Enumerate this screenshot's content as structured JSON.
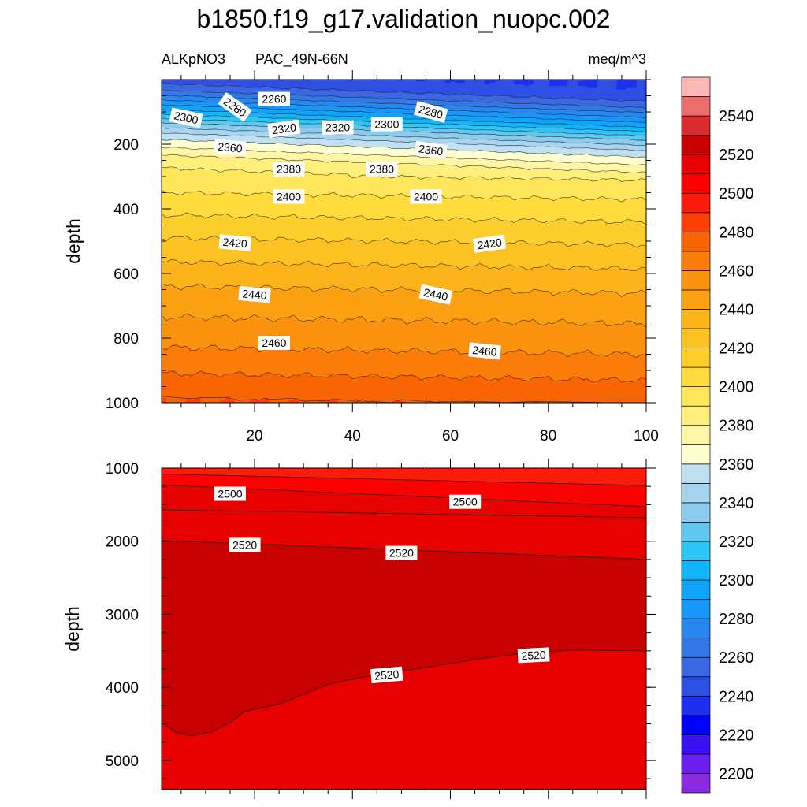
{
  "chart_data": {
    "type": "contour",
    "title": "b1850.f19_g17.validation_nuopc.002",
    "variable": "ALKpNO3",
    "region": "PAC_49N-66N",
    "units": "meq/m^3",
    "colorbar": {
      "levels": [
        2200,
        2210,
        2220,
        2230,
        2240,
        2250,
        2260,
        2270,
        2280,
        2290,
        2300,
        2310,
        2320,
        2330,
        2340,
        2350,
        2360,
        2370,
        2380,
        2390,
        2400,
        2410,
        2420,
        2430,
        2440,
        2450,
        2460,
        2470,
        2480,
        2490,
        2500,
        2510,
        2520,
        2530,
        2540,
        2550
      ],
      "labels": [
        "2200",
        "2220",
        "2240",
        "2260",
        "2280",
        "2300",
        "2320",
        "2340",
        "2360",
        "2380",
        "2400",
        "2420",
        "2440",
        "2460",
        "2480",
        "2500",
        "2520",
        "2540"
      ],
      "colors": [
        "#8a2be2",
        "#6a1ff0",
        "#3a10f5",
        "#0000ff",
        "#1d2ff0",
        "#2d4fe5",
        "#3b68e2",
        "#3278e8",
        "#2687f0",
        "#1796fb",
        "#0fa4fb",
        "#12b4fb",
        "#2bc6f6",
        "#5ec8f1",
        "#8ccbee",
        "#a7d4ee",
        "#bfe1f2",
        "#ffffcf",
        "#fff7a6",
        "#fff07e",
        "#ffe65a",
        "#ffdc3c",
        "#fdcf2d",
        "#fcc222",
        "#fdb31a",
        "#fca212",
        "#fb920e",
        "#fb7c08",
        "#f96405",
        "#fb3f06",
        "#fe1b0a",
        "#ff0000",
        "#e60000",
        "#c80000",
        "#da2c2c",
        "#ec6c6c",
        "#ffb6b6"
      ]
    },
    "x": {
      "range": [
        1,
        100
      ],
      "ticks": [
        20,
        40,
        60,
        80,
        100
      ],
      "tick_labels": [
        "20",
        "40",
        "60",
        "80",
        "100"
      ]
    },
    "panels": [
      {
        "name": "upper",
        "ylabel": "depth",
        "ylim": [
          0,
          1000
        ],
        "yticks": [
          200,
          400,
          600,
          800,
          1000
        ],
        "ytick_labels": [
          "200",
          "400",
          "600",
          "800",
          "1000"
        ],
        "contour_labels": [
          {
            "text": "2260",
            "x": 24,
            "y": 60,
            "angle": 0
          },
          {
            "text": "2280",
            "x": 16,
            "y": 85,
            "angle": 35
          },
          {
            "text": "2280",
            "x": 56,
            "y": 100,
            "angle": 15
          },
          {
            "text": "2300",
            "x": 6,
            "y": 118,
            "angle": 12
          },
          {
            "text": "2300",
            "x": 47,
            "y": 138,
            "angle": 0
          },
          {
            "text": "2320",
            "x": 26,
            "y": 152,
            "angle": -8
          },
          {
            "text": "2320",
            "x": 37,
            "y": 148,
            "angle": 0
          },
          {
            "text": "2360",
            "x": 15,
            "y": 210,
            "angle": 5
          },
          {
            "text": "2360",
            "x": 56,
            "y": 218,
            "angle": 8
          },
          {
            "text": "2380",
            "x": 27,
            "y": 277,
            "angle": 0
          },
          {
            "text": "2380",
            "x": 46,
            "y": 277,
            "angle": 0
          },
          {
            "text": "2400",
            "x": 27,
            "y": 362,
            "angle": 0
          },
          {
            "text": "2400",
            "x": 55,
            "y": 362,
            "angle": 0
          },
          {
            "text": "2420",
            "x": 16,
            "y": 505,
            "angle": 5
          },
          {
            "text": "2420",
            "x": 68,
            "y": 508,
            "angle": -8
          },
          {
            "text": "2440",
            "x": 20,
            "y": 665,
            "angle": 5
          },
          {
            "text": "2440",
            "x": 57,
            "y": 665,
            "angle": 12
          },
          {
            "text": "2460",
            "x": 24,
            "y": 815,
            "angle": 0
          },
          {
            "text": "2460",
            "x": 67,
            "y": 840,
            "angle": 6
          }
        ]
      },
      {
        "name": "lower",
        "ylabel": "depth",
        "ylim": [
          1000,
          5400
        ],
        "yticks": [
          1000,
          2000,
          3000,
          4000,
          5000
        ],
        "ytick_labels": [
          "1000",
          "2000",
          "3000",
          "4000",
          "5000"
        ],
        "contour_labels": [
          {
            "text": "2500",
            "x": 15,
            "y": 1350,
            "angle": 0
          },
          {
            "text": "2500",
            "x": 63,
            "y": 1460,
            "angle": 0
          },
          {
            "text": "2520",
            "x": 18,
            "y": 2050,
            "angle": 0
          },
          {
            "text": "2520",
            "x": 50,
            "y": 2160,
            "angle": 0
          },
          {
            "text": "2520",
            "x": 47,
            "y": 3830,
            "angle": -5
          },
          {
            "text": "2520",
            "x": 77,
            "y": 3560,
            "angle": -3
          }
        ]
      }
    ]
  }
}
